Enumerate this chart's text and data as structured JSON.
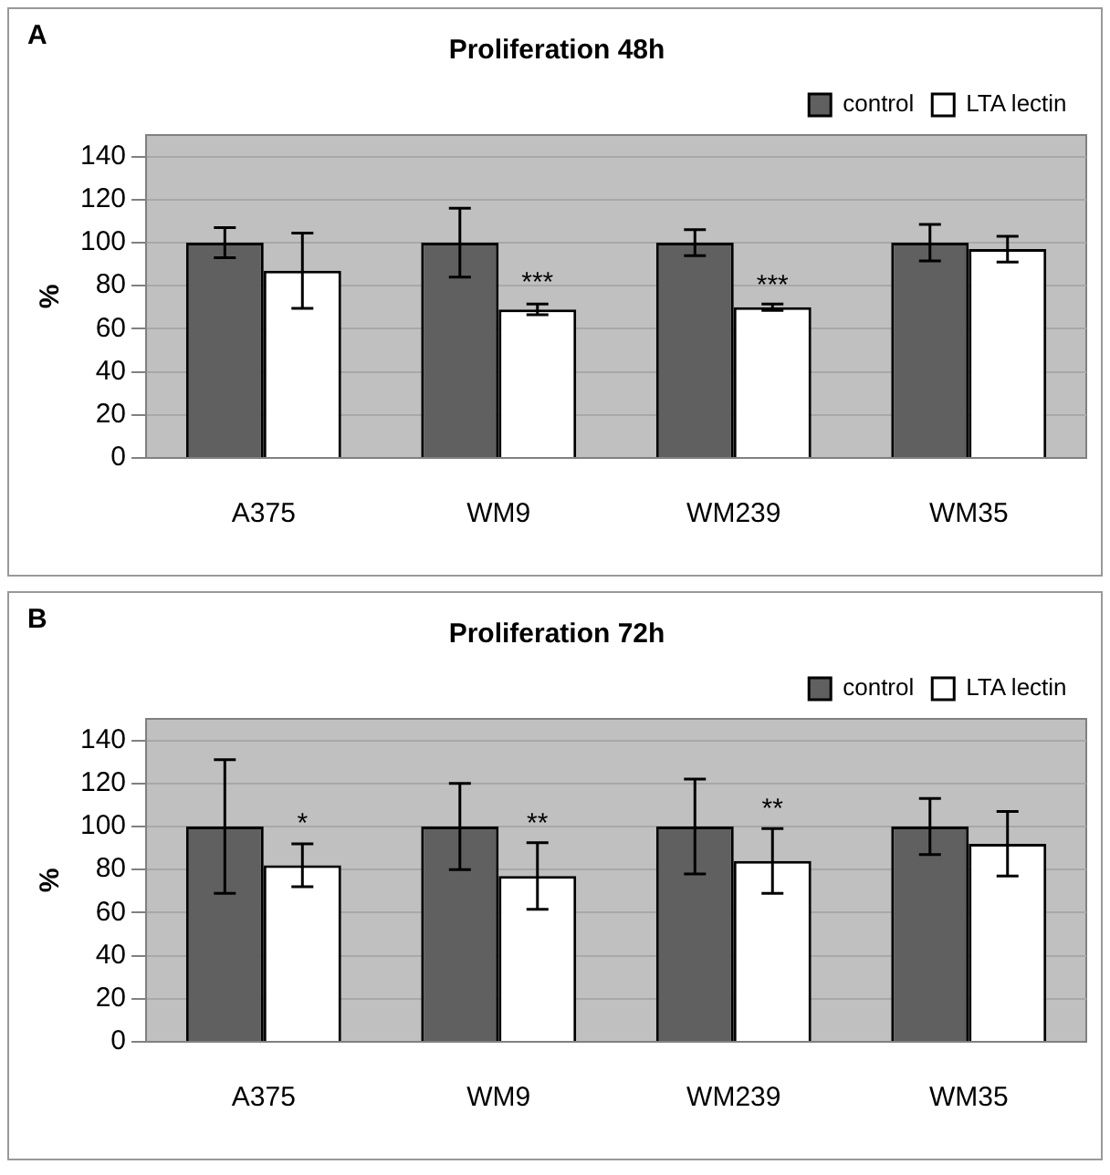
{
  "chart_data": [
    {
      "type": "bar",
      "title": "Proliferation 48h",
      "ylabel": "%",
      "categories": [
        "A375",
        "WM9",
        "WM239",
        "WM35"
      ],
      "series": [
        {
          "name": "control",
          "color": "#606060",
          "values": [
            100,
            100,
            100,
            100
          ],
          "errors": [
            7,
            16,
            6,
            8.5
          ]
        },
        {
          "name": "LTA lectin",
          "color": "#ffffff",
          "values": [
            87,
            69,
            70,
            97
          ],
          "errors": [
            17.5,
            2.5,
            1.5,
            6
          ]
        }
      ],
      "ylim": [
        0,
        150
      ],
      "yticks": [
        0,
        20,
        40,
        60,
        80,
        100,
        120,
        140
      ],
      "grid": "y",
      "legend": "top right",
      "annotations": [
        "A",
        {
          "text": "***",
          "x": "WM9",
          "y": 72
        },
        {
          "text": "***",
          "x": "WM239",
          "y": 71
        }
      ]
    },
    {
      "type": "bar",
      "title": "Proliferation 72h",
      "ylabel": "%",
      "categories": [
        "A375",
        "WM9",
        "WM239",
        "WM35"
      ],
      "series": [
        {
          "name": "control",
          "color": "#606060",
          "values": [
            100,
            100,
            100,
            100
          ],
          "errors": [
            31,
            20,
            22,
            13
          ]
        },
        {
          "name": "LTA lectin",
          "color": "#ffffff",
          "values": [
            82,
            77,
            84,
            92
          ],
          "errors": [
            10,
            15.5,
            15,
            15
          ]
        }
      ],
      "ylim": [
        0,
        150
      ],
      "yticks": [
        0,
        20,
        40,
        60,
        80,
        100,
        120,
        140
      ],
      "grid": "y",
      "legend": "top right",
      "annotations": [
        "B",
        {
          "text": "*",
          "x": "A375",
          "y": 92
        },
        {
          "text": "**",
          "x": "WM9",
          "y": 92
        },
        {
          "text": "**",
          "x": "WM239",
          "y": 99
        }
      ]
    }
  ]
}
